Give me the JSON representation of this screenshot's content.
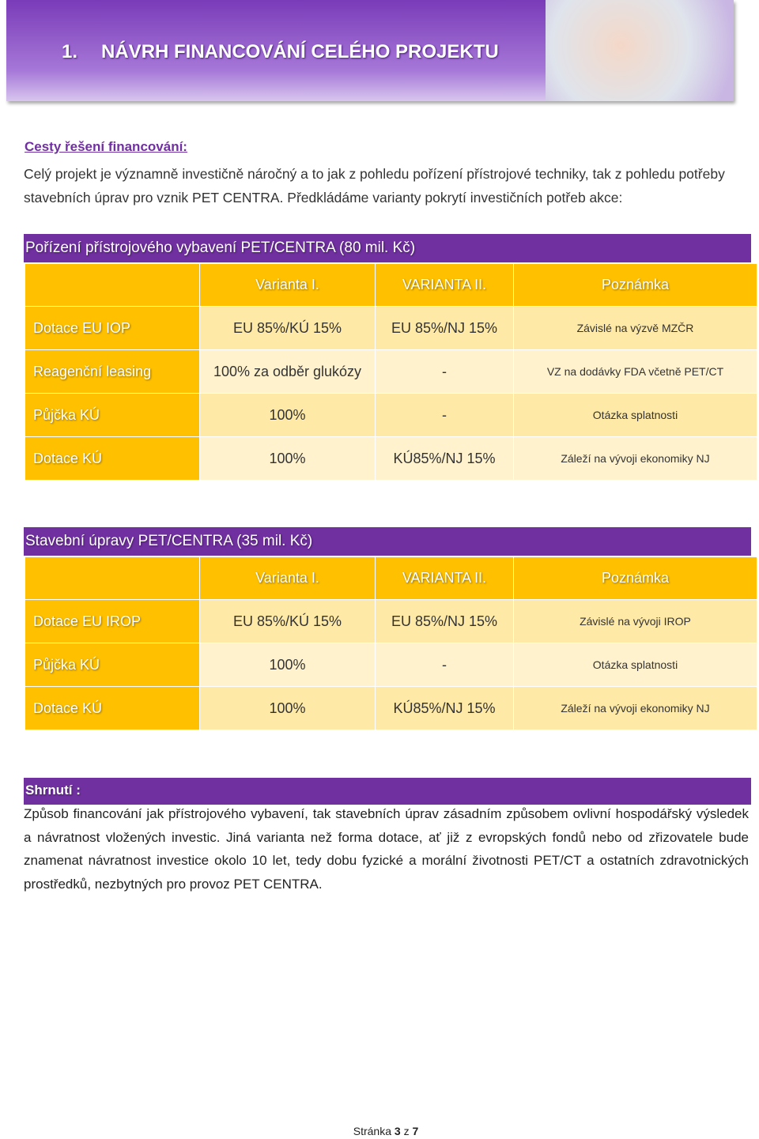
{
  "header": {
    "number": "1.",
    "title": "NÁVRH FINANCOVÁNÍ CELÉHO PROJEKTU"
  },
  "intro": {
    "heading": "Cesty řešení financování:",
    "paragraph": "Celý projekt je významně investičně náročný a to jak z pohledu pořízení přístrojové techniky, tak z pohledu potřeby stavebních úprav pro vznik PET CENTRA. Předkládáme varianty pokrytí investičních potřeb akce:"
  },
  "sections": [
    {
      "title": "Pořízení přístrojového vybavení PET/CENTRA (80 mil. Kč)",
      "columns": [
        "Varianta I.",
        "VARIANTA II.",
        "Poznámka"
      ],
      "rows": [
        [
          "Dotace EU IOP",
          "EU 85%/KÚ 15%",
          "EU 85%/NJ 15%",
          "Závislé na výzvě MZČR"
        ],
        [
          "Reagenční leasing",
          "100% za odběr glukózy",
          "-",
          "VZ na dodávky FDA včetně PET/CT"
        ],
        [
          "Půjčka KÚ",
          "100%",
          "-",
          "Otázka splatnosti"
        ],
        [
          "Dotace KÚ",
          "100%",
          "KÚ85%/NJ 15%",
          "Záleží na vývoji ekonomiky NJ"
        ]
      ]
    },
    {
      "title": "Stavební úpravy PET/CENTRA (35 mil. Kč)",
      "columns": [
        "Varianta I.",
        "VARIANTA II.",
        "Poznámka"
      ],
      "rows": [
        [
          "Dotace EU IROP",
          "EU 85%/KÚ 15%",
          "EU 85%/NJ 15%",
          "Závislé na vývoji IROP"
        ],
        [
          "Půjčka KÚ",
          "100%",
          "-",
          "Otázka splatnosti"
        ],
        [
          "Dotace KÚ",
          "100%",
          "KÚ85%/NJ 15%",
          "Záleží na vývoji ekonomiky NJ"
        ]
      ]
    }
  ],
  "summary": {
    "heading": "Shrnutí :",
    "paragraph": "Způsob financování jak přístrojového vybavení, tak stavebních úprav zásadním způsobem ovlivní hospodářský výsledek a návratnost vložených investic. Jiná varianta než forma dotace, ať již z evropských fondů nebo od zřizovatele bude znamenat návratnost investice okolo 10 let, tedy dobu fyzické a morální životnosti PET/CT a ostatních zdravotnických prostředků, nezbytných pro provoz PET CENTRA."
  },
  "footer": {
    "label": "Stránka",
    "page": 3,
    "separator": "z",
    "total": 7
  }
}
